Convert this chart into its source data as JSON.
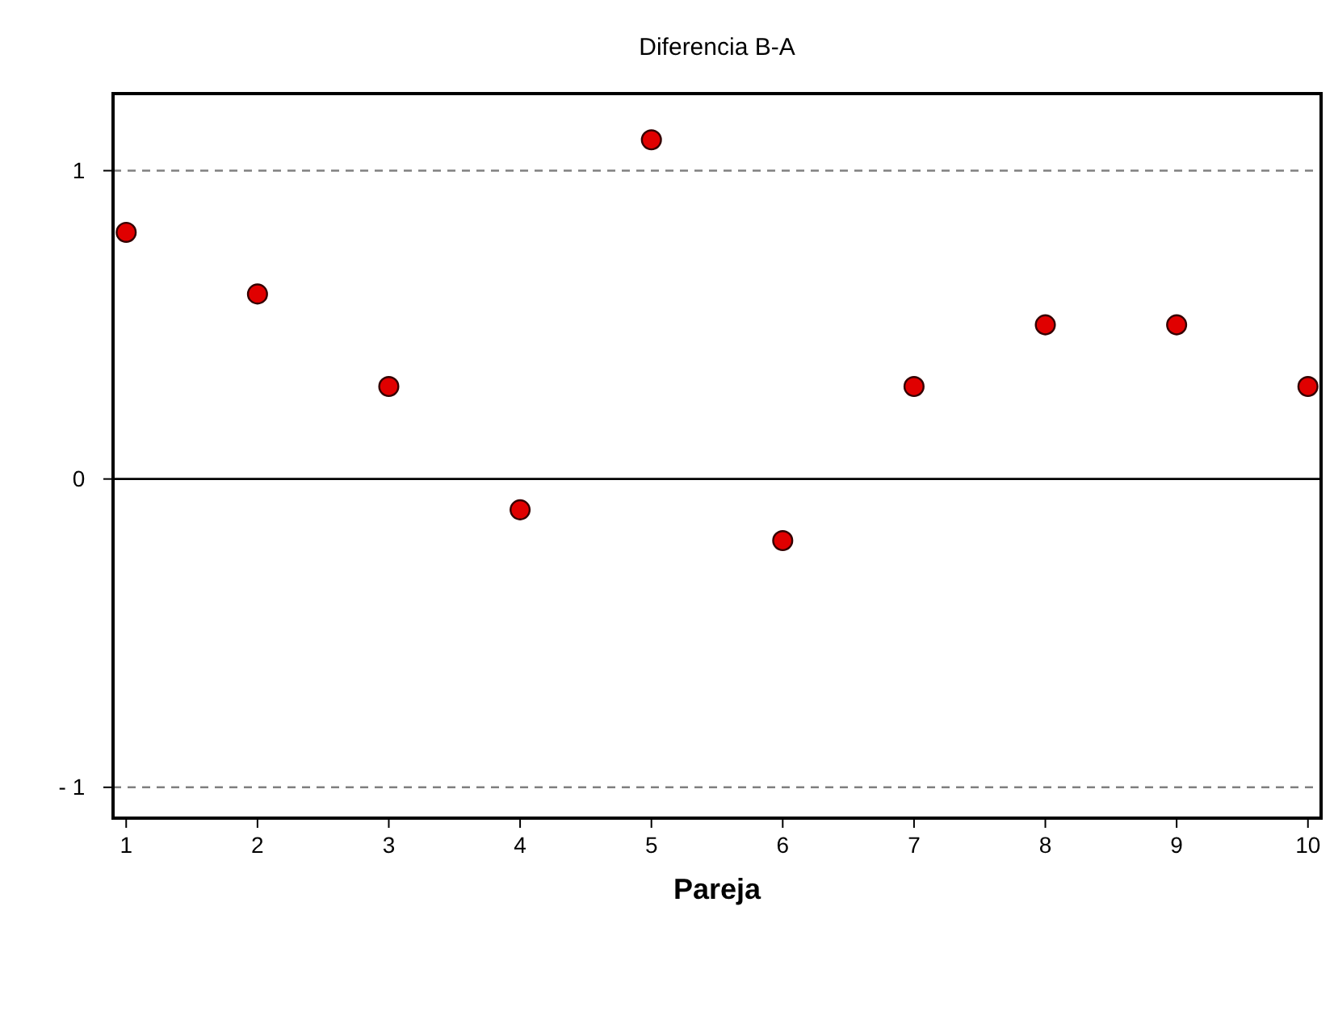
{
  "chart_data": {
    "type": "scatter",
    "title": "Diferencia B-A",
    "xlabel": "Pareja",
    "x": [
      1,
      2,
      3,
      4,
      5,
      6,
      7,
      8,
      9,
      10
    ],
    "series": [
      {
        "color": "#e00000",
        "values": [
          0.8,
          0.6,
          0.3,
          -0.1,
          1.1,
          -0.2,
          0.3,
          0.5,
          0.5,
          0.3
        ]
      }
    ],
    "xlim": [
      0.9,
      10.1
    ],
    "ylim": [
      -1.1,
      1.25
    ],
    "xticks": [
      1,
      2,
      3,
      4,
      5,
      6,
      7,
      8,
      9,
      10
    ],
    "yticks": [
      {
        "value": -1,
        "label": "- 1"
      },
      0,
      1
    ],
    "ref_lines": [
      {
        "axis": "y",
        "value": 1,
        "color": "#808080",
        "line_style": "dashed"
      },
      {
        "axis": "y",
        "value": 0,
        "color": "#000000",
        "line_style": "solid"
      },
      {
        "axis": "y",
        "value": -1,
        "color": "#808080",
        "line_style": "dashed"
      }
    ],
    "marker": "circle"
  }
}
